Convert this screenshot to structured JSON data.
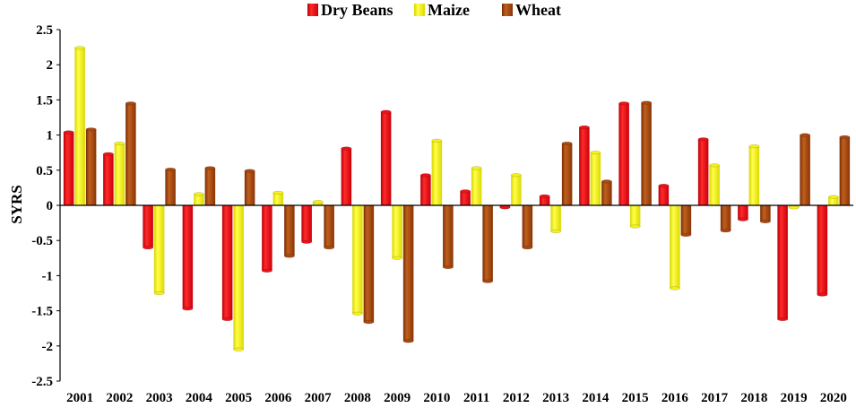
{
  "chart_data": {
    "type": "bar",
    "title": "",
    "xlabel": "",
    "ylabel": "SYRS",
    "ylim": [
      -2.5,
      2.5
    ],
    "yticks": [
      2.5,
      2,
      1.5,
      1,
      0.5,
      0,
      -0.5,
      -1,
      -1.5,
      -2,
      -2.5
    ],
    "ytick_labels": [
      "2.5",
      "2",
      "1.5",
      "1",
      "0.5",
      "0",
      "-0.5",
      "-1",
      "-1.5",
      "-2",
      "-2.5"
    ],
    "grid": false,
    "legend_position": "top-center",
    "categories": [
      "2001",
      "2002",
      "2003",
      "2004",
      "2005",
      "2006",
      "2007",
      "2008",
      "2009",
      "2010",
      "2011",
      "2012",
      "2013",
      "2014",
      "2015",
      "2016",
      "2017",
      "2018",
      "2019",
      "2020"
    ],
    "series": [
      {
        "name": "Dry Beans",
        "color": "#e8141c",
        "values": [
          1.04,
          0.73,
          -0.6,
          -1.47,
          -1.62,
          -0.93,
          -0.52,
          0.81,
          1.33,
          0.43,
          0.2,
          -0.03,
          0.13,
          1.11,
          1.45,
          0.28,
          0.94,
          -0.2,
          -1.62,
          -1.27
        ]
      },
      {
        "name": "Maize",
        "color": "#f4f01a",
        "values": [
          2.24,
          0.88,
          -1.25,
          0.16,
          -2.05,
          0.18,
          0.05,
          -1.54,
          -0.75,
          0.92,
          0.53,
          0.43,
          -0.37,
          0.75,
          -0.3,
          -1.18,
          0.57,
          0.84,
          -0.03,
          0.12
        ]
      },
      {
        "name": "Wheat",
        "color": "#a84812",
        "values": [
          1.08,
          1.45,
          0.51,
          0.53,
          0.49,
          -0.72,
          -0.6,
          -1.66,
          -1.93,
          -0.88,
          -1.08,
          -0.6,
          0.88,
          0.34,
          1.46,
          -0.42,
          -0.36,
          -0.23,
          1.0,
          0.97
        ]
      }
    ]
  }
}
